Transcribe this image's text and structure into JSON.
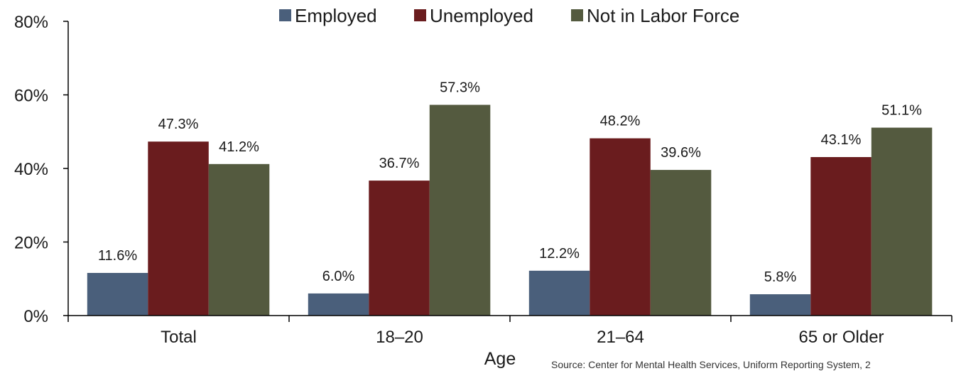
{
  "chart_data": {
    "type": "bar",
    "categories": [
      "Total",
      "18–20",
      "21–64",
      "65 or Older"
    ],
    "series": [
      {
        "name": "Employed",
        "values": [
          11.6,
          6.0,
          12.2,
          5.8
        ],
        "color": "#4a5f7b"
      },
      {
        "name": "Unemployed",
        "values": [
          47.3,
          36.7,
          48.2,
          43.1
        ],
        "color": "#6a1c1e"
      },
      {
        "name": "Not in Labor Force",
        "values": [
          41.2,
          57.3,
          39.6,
          51.1
        ],
        "color": "#545a3f"
      }
    ],
    "xlabel": "Age",
    "ylabel": "",
    "ylim": [
      0,
      80
    ],
    "yticks": [
      0,
      20,
      40,
      60,
      80
    ],
    "ytick_labels": [
      "0%",
      "20%",
      "40%",
      "60%",
      "80%"
    ],
    "value_suffix": "%",
    "grid": false,
    "legend_position": "top"
  },
  "source_note": "Source: Center for Mental Health Services, Uniform Reporting System, 2"
}
